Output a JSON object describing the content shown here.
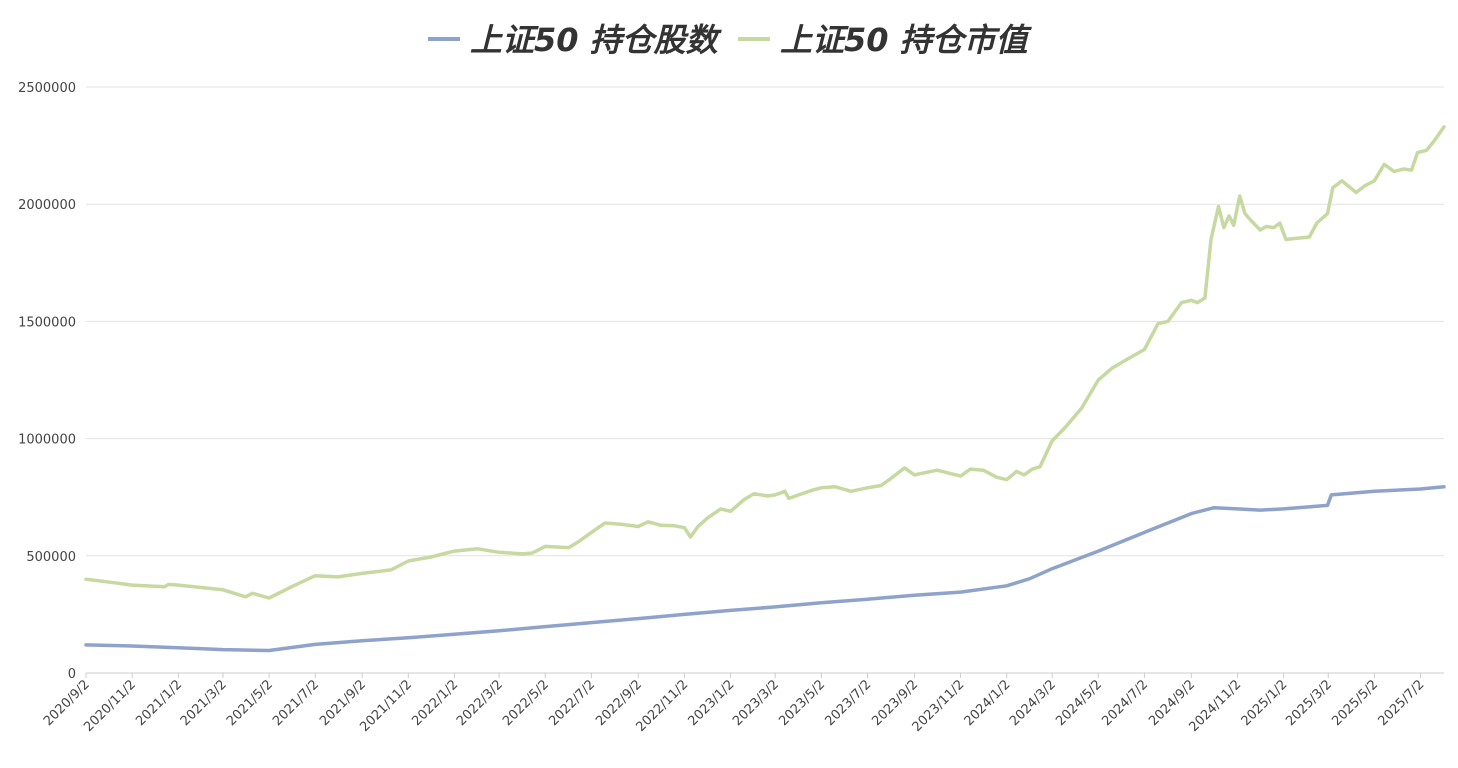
{
  "chart_data": {
    "type": "line",
    "title": "",
    "xlabel": "",
    "ylabel": "",
    "ylim": [
      0,
      2500000
    ],
    "y_ticks": [
      0,
      500000,
      1000000,
      1500000,
      2000000,
      2500000
    ],
    "y_tick_labels": [
      "0",
      "500000",
      "1000000",
      "1500000",
      "2000000",
      "2500000"
    ],
    "x_tick_labels": [
      "2020/9/2",
      "2020/11/2",
      "2021/1/2",
      "2021/3/2",
      "2021/5/2",
      "2021/7/2",
      "2021/9/2",
      "2021/11/2",
      "2022/1/2",
      "2022/3/2",
      "2022/5/2",
      "2022/7/2",
      "2022/9/2",
      "2022/11/2",
      "2023/1/2",
      "2023/3/2",
      "2023/5/2",
      "2023/7/2",
      "2023/9/2",
      "2023/11/2",
      "2024/1/2",
      "2024/3/2",
      "2024/5/2",
      "2024/7/2",
      "2024/9/2",
      "2024/11/2",
      "2025/1/2",
      "2025/3/2",
      "2025/5/2",
      "2025/7/2"
    ],
    "x_range": [
      "2020/9/2",
      "2025/8/2"
    ],
    "grid": true,
    "legend_position": "top-center",
    "series": [
      {
        "name": "上证50 持仓股数",
        "color": "#8ea2cc",
        "points": [
          [
            "2020/9/2",
            120000
          ],
          [
            "2020/11/2",
            115000
          ],
          [
            "2021/1/2",
            108000
          ],
          [
            "2021/3/2",
            100000
          ],
          [
            "2021/5/2",
            96000
          ],
          [
            "2021/7/2",
            122000
          ],
          [
            "2021/9/2",
            138000
          ],
          [
            "2021/11/2",
            150000
          ],
          [
            "2022/1/2",
            165000
          ],
          [
            "2022/3/2",
            180000
          ],
          [
            "2022/5/2",
            198000
          ],
          [
            "2022/7/2",
            215000
          ],
          [
            "2022/9/2",
            232000
          ],
          [
            "2022/11/2",
            250000
          ],
          [
            "2023/1/2",
            267000
          ],
          [
            "2023/3/2",
            282000
          ],
          [
            "2023/5/2",
            300000
          ],
          [
            "2023/7/2",
            315000
          ],
          [
            "2023/9/2",
            332000
          ],
          [
            "2023/11/2",
            345000
          ],
          [
            "2024/1/2",
            372000
          ],
          [
            "2024/2/1",
            402000
          ],
          [
            "2024/3/2",
            445000
          ],
          [
            "2024/5/2",
            520000
          ],
          [
            "2024/7/2",
            600000
          ],
          [
            "2024/9/2",
            680000
          ],
          [
            "2024/10/2",
            705000
          ],
          [
            "2024/11/2",
            700000
          ],
          [
            "2024/12/2",
            695000
          ],
          [
            "2025/1/2",
            700000
          ],
          [
            "2025/3/1",
            715000
          ],
          [
            "2025/3/6",
            760000
          ],
          [
            "2025/5/2",
            775000
          ],
          [
            "2025/7/2",
            785000
          ],
          [
            "2025/8/2",
            795000
          ]
        ]
      },
      {
        "name": "上证50 持仓市值",
        "color": "#c6d9a1",
        "points": [
          [
            "2020/9/2",
            400000
          ],
          [
            "2020/10/10",
            385000
          ],
          [
            "2020/11/2",
            375000
          ],
          [
            "2020/12/15",
            368000
          ],
          [
            "2020/12/20",
            378000
          ],
          [
            "2021/1/2",
            375000
          ],
          [
            "2021/3/2",
            355000
          ],
          [
            "2021/4/1",
            325000
          ],
          [
            "2021/4/10",
            340000
          ],
          [
            "2021/5/2",
            320000
          ],
          [
            "2021/6/2",
            370000
          ],
          [
            "2021/7/2",
            415000
          ],
          [
            "2021/8/1",
            410000
          ],
          [
            "2021/9/2",
            425000
          ],
          [
            "2021/10/10",
            440000
          ],
          [
            "2021/11/2",
            478000
          ],
          [
            "2021/12/2",
            495000
          ],
          [
            "2022/1/2",
            520000
          ],
          [
            "2022/2/2",
            530000
          ],
          [
            "2022/3/2",
            515000
          ],
          [
            "2022/4/2",
            508000
          ],
          [
            "2022/4/15",
            512000
          ],
          [
            "2022/5/2",
            540000
          ],
          [
            "2022/6/2",
            535000
          ],
          [
            "2022/6/15",
            560000
          ],
          [
            "2022/7/2",
            600000
          ],
          [
            "2022/7/20",
            640000
          ],
          [
            "2022/8/10",
            635000
          ],
          [
            "2022/9/2",
            625000
          ],
          [
            "2022/9/15",
            645000
          ],
          [
            "2022/10/2",
            630000
          ],
          [
            "2022/10/20",
            628000
          ],
          [
            "2022/11/2",
            620000
          ],
          [
            "2022/11/10",
            580000
          ],
          [
            "2022/11/20",
            625000
          ],
          [
            "2022/12/2",
            660000
          ],
          [
            "2022/12/20",
            700000
          ],
          [
            "2023/1/2",
            690000
          ],
          [
            "2023/1/20",
            740000
          ],
          [
            "2023/2/2",
            765000
          ],
          [
            "2023/2/20",
            755000
          ],
          [
            "2023/3/2",
            760000
          ],
          [
            "2023/3/15",
            775000
          ],
          [
            "2023/3/20",
            745000
          ],
          [
            "2023/4/2",
            760000
          ],
          [
            "2023/4/20",
            780000
          ],
          [
            "2023/5/2",
            790000
          ],
          [
            "2023/5/20",
            795000
          ],
          [
            "2023/6/10",
            775000
          ],
          [
            "2023/7/2",
            790000
          ],
          [
            "2023/7/20",
            800000
          ],
          [
            "2023/8/2",
            830000
          ],
          [
            "2023/8/20",
            875000
          ],
          [
            "2023/9/2",
            845000
          ],
          [
            "2023/10/2",
            865000
          ],
          [
            "2023/11/2",
            840000
          ],
          [
            "2023/11/15",
            870000
          ],
          [
            "2023/12/2",
            865000
          ],
          [
            "2023/12/20",
            835000
          ],
          [
            "2024/1/2",
            825000
          ],
          [
            "2024/1/15",
            860000
          ],
          [
            "2024/1/25",
            845000
          ],
          [
            "2024/2/5",
            870000
          ],
          [
            "2024/2/15",
            880000
          ],
          [
            "2024/3/2",
            990000
          ],
          [
            "2024/3/20",
            1050000
          ],
          [
            "2024/4/10",
            1130000
          ],
          [
            "2024/5/2",
            1250000
          ],
          [
            "2024/5/20",
            1300000
          ],
          [
            "2024/6/10",
            1340000
          ],
          [
            "2024/7/2",
            1380000
          ],
          [
            "2024/7/20",
            1490000
          ],
          [
            "2024/8/2",
            1500000
          ],
          [
            "2024/8/20",
            1580000
          ],
          [
            "2024/9/2",
            1590000
          ],
          [
            "2024/9/10",
            1580000
          ],
          [
            "2024/9/20",
            1600000
          ],
          [
            "2024/9/28",
            1850000
          ],
          [
            "2024/10/8",
            1990000
          ],
          [
            "2024/10/15",
            1900000
          ],
          [
            "2024/10/22",
            1950000
          ],
          [
            "2024/10/28",
            1910000
          ],
          [
            "2024/11/5",
            2035000
          ],
          [
            "2024/11/12",
            1960000
          ],
          [
            "2024/11/20",
            1930000
          ],
          [
            "2024/12/2",
            1890000
          ],
          [
            "2024/12/10",
            1905000
          ],
          [
            "2024/12/20",
            1900000
          ],
          [
            "2024/12/28",
            1920000
          ],
          [
            "2025/1/5",
            1850000
          ],
          [
            "2025/1/20",
            1855000
          ],
          [
            "2025/2/5",
            1860000
          ],
          [
            "2025/2/15",
            1920000
          ],
          [
            "2025/3/1",
            1960000
          ],
          [
            "2025/3/8",
            2070000
          ],
          [
            "2025/3/20",
            2100000
          ],
          [
            "2025/4/8",
            2050000
          ],
          [
            "2025/4/20",
            2080000
          ],
          [
            "2025/5/2",
            2100000
          ],
          [
            "2025/5/15",
            2170000
          ],
          [
            "2025/5/28",
            2140000
          ],
          [
            "2025/6/10",
            2150000
          ],
          [
            "2025/6/20",
            2145000
          ],
          [
            "2025/6/28",
            2220000
          ],
          [
            "2025/7/10",
            2230000
          ],
          [
            "2025/7/20",
            2270000
          ],
          [
            "2025/8/2",
            2330000
          ]
        ]
      }
    ]
  }
}
